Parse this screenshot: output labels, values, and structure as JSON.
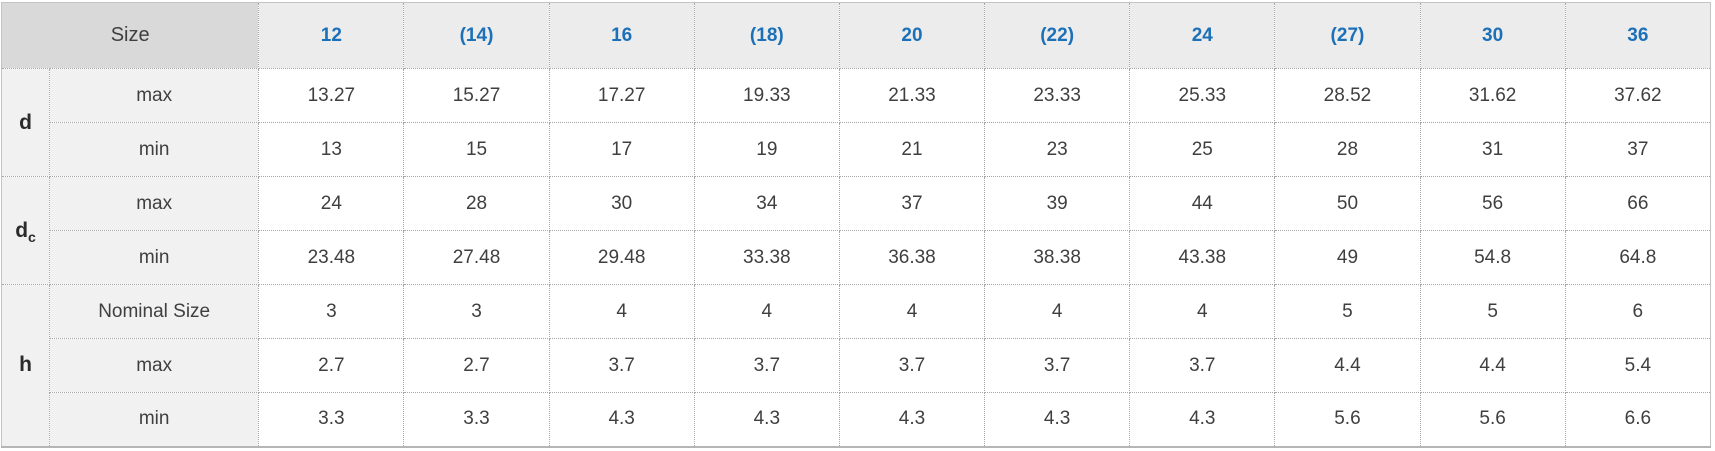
{
  "table": {
    "corner_label": "Size",
    "size_headers": [
      "12",
      "(14)",
      "16",
      "(18)",
      "20",
      "(22)",
      "24",
      "(27)",
      "30",
      "36"
    ],
    "sections": [
      {
        "param": "d",
        "sub": null,
        "rows": [
          {
            "label": "max",
            "values": [
              "13.27",
              "15.27",
              "17.27",
              "19.33",
              "21.33",
              "23.33",
              "25.33",
              "28.52",
              "31.62",
              "37.62"
            ]
          },
          {
            "label": "min",
            "values": [
              "13",
              "15",
              "17",
              "19",
              "21",
              "23",
              "25",
              "28",
              "31",
              "37"
            ]
          }
        ]
      },
      {
        "param": "d",
        "sub": "c",
        "rows": [
          {
            "label": "max",
            "values": [
              "24",
              "28",
              "30",
              "34",
              "37",
              "39",
              "44",
              "50",
              "56",
              "66"
            ]
          },
          {
            "label": "min",
            "values": [
              "23.48",
              "27.48",
              "29.48",
              "33.38",
              "36.38",
              "38.38",
              "43.38",
              "49",
              "54.8",
              "64.8"
            ]
          }
        ]
      },
      {
        "param": "h",
        "sub": null,
        "rows": [
          {
            "label": "Nominal Size",
            "values": [
              "3",
              "3",
              "4",
              "4",
              "4",
              "4",
              "4",
              "5",
              "5",
              "6"
            ]
          },
          {
            "label": "max",
            "values": [
              "2.7",
              "2.7",
              "3.7",
              "3.7",
              "3.7",
              "3.7",
              "3.7",
              "4.4",
              "4.4",
              "5.4"
            ]
          },
          {
            "label": "min",
            "values": [
              "3.3",
              "3.3",
              "4.3",
              "4.3",
              "4.3",
              "4.3",
              "4.3",
              "5.6",
              "5.6",
              "6.6"
            ]
          }
        ]
      }
    ]
  },
  "colors": {
    "header_link_blue": "#1c70b8",
    "corner_bg": "#d9d9d9",
    "column_header_bg": "#ececec",
    "label_bg": "#f1f1f1",
    "value_bg": "#ffffff",
    "text": "#3f3f3f",
    "border_dotted": "#a6a6a6",
    "border_outer": "#c4c4c4",
    "border_outer_bottom": "#b5b5b5"
  }
}
